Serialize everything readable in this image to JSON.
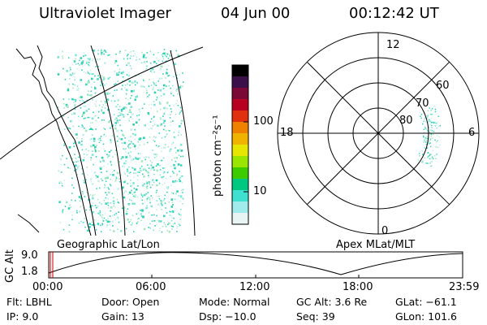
{
  "header": {
    "instrument": "Ultraviolet Imager",
    "date": "04 Jun 00",
    "time": "00:12:42 UT"
  },
  "colorbar": {
    "unit_label": "photon cm⁻²s⁻¹",
    "ticks": [
      "100",
      "10"
    ],
    "colors": [
      "#000000",
      "#3a0f4a",
      "#7a0a35",
      "#b80020",
      "#e03010",
      "#f08000",
      "#f0b400",
      "#e6e600",
      "#9ae600",
      "#3ccc00",
      "#00c880",
      "#40e0d0",
      "#a0ecec",
      "#e8f4f4"
    ]
  },
  "geo_panel": {
    "label": "Geographic Lat/Lon",
    "aurora_color": "#3ad7c0"
  },
  "polar_panel": {
    "label": "Apex MLat/MLT",
    "mlt_labels": {
      "top": "12",
      "left": "18",
      "right": "6",
      "bottom": "0"
    },
    "lat_labels": [
      "60",
      "70",
      "80"
    ]
  },
  "altitude_plot": {
    "ylabel": "GC Alt",
    "ytick_top": "9.0",
    "ytick_bottom": "1.8",
    "xticks": [
      "00:00",
      "06:00",
      "12:00",
      "18:00",
      "23:59"
    ],
    "marker_color": "#cc0000"
  },
  "info": {
    "flt": "Flt: LBHL",
    "door": "Door: Open",
    "mode": "Mode: Normal",
    "gc_alt": "GC Alt: 3.6 Re",
    "glat": "GLat: −61.1",
    "ip": "IP: 9.0",
    "gain": "Gain: 13",
    "dsp": "Dsp: −10.0",
    "seq": "Seq: 39",
    "glon": "GLon: 101.6"
  }
}
